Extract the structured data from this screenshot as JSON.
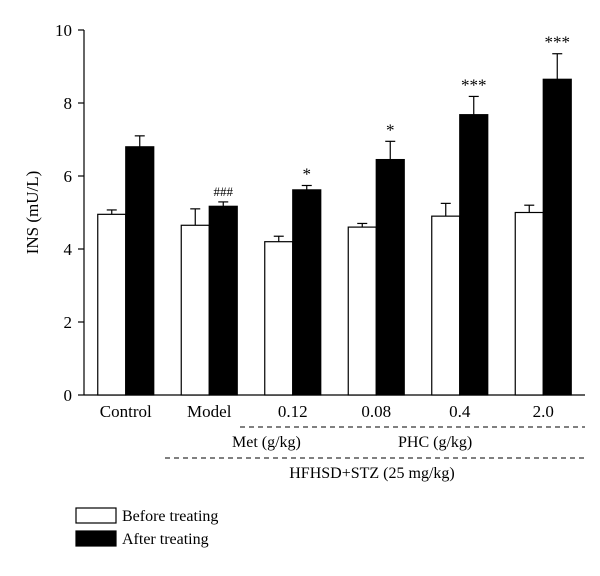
{
  "chart_data": {
    "type": "bar",
    "ylabel": "INS (mU/L)",
    "ylim": [
      0,
      10
    ],
    "yticks": [
      "0",
      "2",
      "4",
      "6",
      "8",
      "10"
    ],
    "categories": [
      "Control",
      "Model",
      "0.12",
      "0.08",
      "0.4",
      "2.0"
    ],
    "series": [
      {
        "name": "Before treating",
        "color": "#ffffff",
        "values": [
          4.95,
          4.65,
          4.2,
          4.6,
          4.9,
          5.0
        ],
        "errors": [
          0.12,
          0.45,
          0.15,
          0.1,
          0.35,
          0.2
        ],
        "annotations": [
          "",
          "",
          "",
          "",
          "",
          ""
        ]
      },
      {
        "name": "After treating",
        "color": "#000000",
        "values": [
          6.8,
          5.17,
          5.62,
          6.45,
          7.68,
          8.65
        ],
        "errors": [
          0.3,
          0.12,
          0.12,
          0.5,
          0.5,
          0.7
        ],
        "annotations": [
          "",
          "###",
          "*",
          "*",
          "***",
          "***"
        ]
      }
    ],
    "group_labels": {
      "met": "Met (g/kg)",
      "phc": "PHC (g/kg)",
      "hfhsd": "HFHSD+STZ (25 mg/kg)"
    },
    "legend_position": "bottom-left"
  }
}
